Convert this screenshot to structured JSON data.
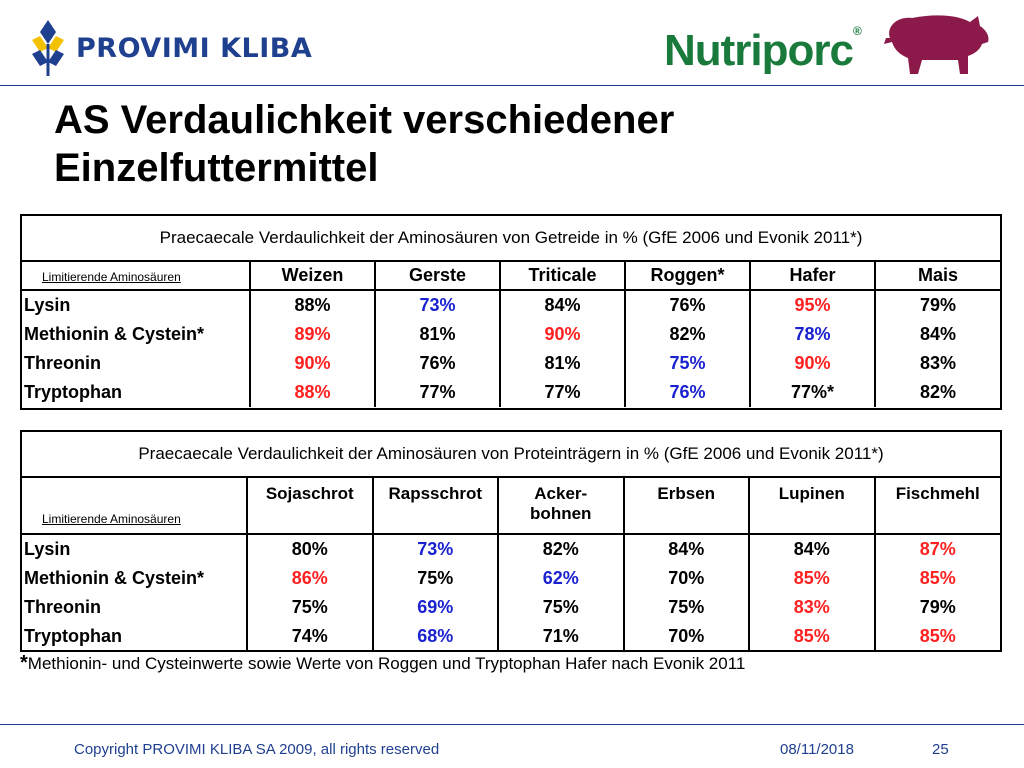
{
  "header": {
    "brand": "PROVIMI KLIBA",
    "product": "Nutriporc",
    "product_mark": "®",
    "brand_color": "#1f3f8f",
    "product_color": "#1a7a3c",
    "pig_color": "#8b1a4a"
  },
  "title": {
    "line1": "AS Verdaulichkeit verschiedener",
    "line2": "Einzelfuttermittel"
  },
  "table_cereals": {
    "caption": "Praecaecale Verdaulichkeit der Aminosäuren von Getreide in % (GfE 2006 und Evonik 2011*)",
    "row_header": "Limitierende Aminosäuren",
    "columns": [
      "Weizen",
      "Gerste",
      "Triticale",
      "Roggen*",
      "Hafer",
      "Mais"
    ],
    "rows": [
      {
        "label": "Lysin",
        "cells": [
          {
            "v": "88%",
            "c": "black"
          },
          {
            "v": "73%",
            "c": "blue"
          },
          {
            "v": "84%",
            "c": "black"
          },
          {
            "v": "76%",
            "c": "black"
          },
          {
            "v": "95%",
            "c": "red"
          },
          {
            "v": "79%",
            "c": "black"
          }
        ]
      },
      {
        "label": "Methionin & Cystein*",
        "cells": [
          {
            "v": "89%",
            "c": "red"
          },
          {
            "v": "81%",
            "c": "black"
          },
          {
            "v": "90%",
            "c": "red"
          },
          {
            "v": "82%",
            "c": "black"
          },
          {
            "v": "78%",
            "c": "blue"
          },
          {
            "v": "84%",
            "c": "black"
          }
        ]
      },
      {
        "label": "Threonin",
        "cells": [
          {
            "v": "90%",
            "c": "red"
          },
          {
            "v": "76%",
            "c": "black"
          },
          {
            "v": "81%",
            "c": "black"
          },
          {
            "v": "75%",
            "c": "blue"
          },
          {
            "v": "90%",
            "c": "red"
          },
          {
            "v": "83%",
            "c": "black"
          }
        ]
      },
      {
        "label": "Tryptophan",
        "cells": [
          {
            "v": "88%",
            "c": "red"
          },
          {
            "v": "77%",
            "c": "black"
          },
          {
            "v": "77%",
            "c": "black"
          },
          {
            "v": "76%",
            "c": "blue"
          },
          {
            "v": "77%*",
            "c": "black"
          },
          {
            "v": "82%",
            "c": "black"
          }
        ]
      }
    ]
  },
  "table_protein": {
    "caption": "Praecaecale Verdaulichkeit der Aminosäuren von Proteinträgern in % (GfE 2006 und Evonik 2011*)",
    "row_header": "Limitierende Aminosäuren",
    "columns": [
      "Sojaschrot",
      "Rapsschrot",
      "Acker-\nbohnen",
      "Erbsen",
      "Lupinen",
      "Fischmehl"
    ],
    "rows": [
      {
        "label": "Lysin",
        "cells": [
          {
            "v": "80%",
            "c": "black"
          },
          {
            "v": "73%",
            "c": "blue"
          },
          {
            "v": "82%",
            "c": "black"
          },
          {
            "v": "84%",
            "c": "black"
          },
          {
            "v": "84%",
            "c": "black"
          },
          {
            "v": "87%",
            "c": "red"
          }
        ]
      },
      {
        "label": "Methionin & Cystein*",
        "cells": [
          {
            "v": "86%",
            "c": "red"
          },
          {
            "v": "75%",
            "c": "black"
          },
          {
            "v": "62%",
            "c": "blue"
          },
          {
            "v": "70%",
            "c": "black"
          },
          {
            "v": "85%",
            "c": "red"
          },
          {
            "v": "85%",
            "c": "red"
          }
        ]
      },
      {
        "label": "Threonin",
        "cells": [
          {
            "v": "75%",
            "c": "black"
          },
          {
            "v": "69%",
            "c": "blue"
          },
          {
            "v": "75%",
            "c": "black"
          },
          {
            "v": "75%",
            "c": "black"
          },
          {
            "v": "83%",
            "c": "red"
          },
          {
            "v": "79%",
            "c": "black"
          }
        ]
      },
      {
        "label": "Tryptophan",
        "cells": [
          {
            "v": "74%",
            "c": "black"
          },
          {
            "v": "68%",
            "c": "blue"
          },
          {
            "v": "71%",
            "c": "black"
          },
          {
            "v": "70%",
            "c": "black"
          },
          {
            "v": "85%",
            "c": "red"
          },
          {
            "v": "85%",
            "c": "red"
          }
        ]
      }
    ]
  },
  "footnote": {
    "mark": "*",
    "text": "Methionin- und Cysteinwerte sowie  Werte von Roggen und Tryptophan Hafer nach Evonik 2011"
  },
  "footer": {
    "copyright": "Copyright PROVIMI KLIBA SA 2009, all rights reserved",
    "date": "08/11/2018",
    "page": "25"
  }
}
